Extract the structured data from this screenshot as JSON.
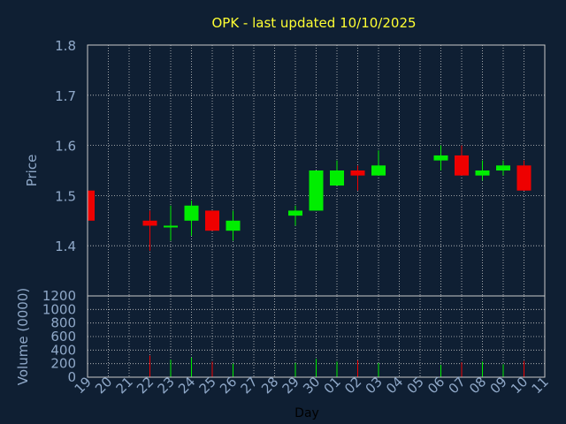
{
  "title": "OPK - last updated 10/10/2025",
  "colors": {
    "background": "#0f1f33",
    "title": "#ffff33",
    "axis_text": "#8fa8c8",
    "xlabel": "#000000",
    "grid": "#c8c8c8",
    "up": "#00ee00",
    "down": "#ee0000"
  },
  "chart_data": [
    {
      "type": "candlestick",
      "ylabel": "Price",
      "ylim": [
        1.3,
        1.8
      ],
      "yticks": [
        "1.4",
        "1.5",
        "1.6",
        "1.7",
        "1.8"
      ],
      "grid": true,
      "categories": [
        "19",
        "20",
        "21",
        "22",
        "23",
        "24",
        "25",
        "26",
        "27",
        "28",
        "29",
        "30",
        "01",
        "02",
        "03",
        "04",
        "05",
        "06",
        "07",
        "08",
        "09",
        "10",
        "11"
      ],
      "candles": [
        {
          "day": "19",
          "open": 1.51,
          "high": 1.51,
          "low": 1.45,
          "close": 1.45
        },
        {
          "day": "22",
          "open": 1.45,
          "high": 1.47,
          "low": 1.39,
          "close": 1.44
        },
        {
          "day": "23",
          "open": 1.44,
          "high": 1.48,
          "low": 1.41,
          "close": 1.44
        },
        {
          "day": "24",
          "open": 1.45,
          "high": 1.49,
          "low": 1.42,
          "close": 1.48
        },
        {
          "day": "25",
          "open": 1.47,
          "high": 1.47,
          "low": 1.43,
          "close": 1.43
        },
        {
          "day": "26",
          "open": 1.43,
          "high": 1.47,
          "low": 1.41,
          "close": 1.45
        },
        {
          "day": "29",
          "open": 1.46,
          "high": 1.48,
          "low": 1.44,
          "close": 1.47
        },
        {
          "day": "30",
          "open": 1.47,
          "high": 1.55,
          "low": 1.47,
          "close": 1.55
        },
        {
          "day": "01",
          "open": 1.52,
          "high": 1.57,
          "low": 1.52,
          "close": 1.55
        },
        {
          "day": "02",
          "open": 1.55,
          "high": 1.56,
          "low": 1.51,
          "close": 1.54
        },
        {
          "day": "03",
          "open": 1.54,
          "high": 1.59,
          "low": 1.54,
          "close": 1.56
        },
        {
          "day": "06",
          "open": 1.57,
          "high": 1.6,
          "low": 1.55,
          "close": 1.58
        },
        {
          "day": "07",
          "open": 1.58,
          "high": 1.6,
          "low": 1.54,
          "close": 1.54
        },
        {
          "day": "08",
          "open": 1.54,
          "high": 1.57,
          "low": 1.53,
          "close": 1.55
        },
        {
          "day": "09",
          "open": 1.55,
          "high": 1.57,
          "low": 1.54,
          "close": 1.56
        },
        {
          "day": "10",
          "open": 1.56,
          "high": 1.57,
          "low": 1.51,
          "close": 1.51
        }
      ]
    },
    {
      "type": "bar",
      "ylabel": "Volume (0000)",
      "xlabel": "Day",
      "ylim": [
        0,
        1200
      ],
      "yticks": [
        "0",
        "200",
        "400",
        "600",
        "800",
        "1000",
        "1200"
      ],
      "grid": true,
      "volumes": [
        {
          "day": "22",
          "value": 320,
          "dir": "down"
        },
        {
          "day": "23",
          "value": 260,
          "dir": "up"
        },
        {
          "day": "24",
          "value": 290,
          "dir": "up"
        },
        {
          "day": "25",
          "value": 230,
          "dir": "down"
        },
        {
          "day": "26",
          "value": 200,
          "dir": "up"
        },
        {
          "day": "29",
          "value": 210,
          "dir": "up"
        },
        {
          "day": "30",
          "value": 270,
          "dir": "up"
        },
        {
          "day": "01",
          "value": 230,
          "dir": "up"
        },
        {
          "day": "02",
          "value": 250,
          "dir": "down"
        },
        {
          "day": "03",
          "value": 210,
          "dir": "up"
        },
        {
          "day": "06",
          "value": 180,
          "dir": "up"
        },
        {
          "day": "07",
          "value": 220,
          "dir": "down"
        },
        {
          "day": "08",
          "value": 230,
          "dir": "up"
        },
        {
          "day": "09",
          "value": 190,
          "dir": "up"
        },
        {
          "day": "10",
          "value": 240,
          "dir": "down"
        }
      ]
    }
  ]
}
